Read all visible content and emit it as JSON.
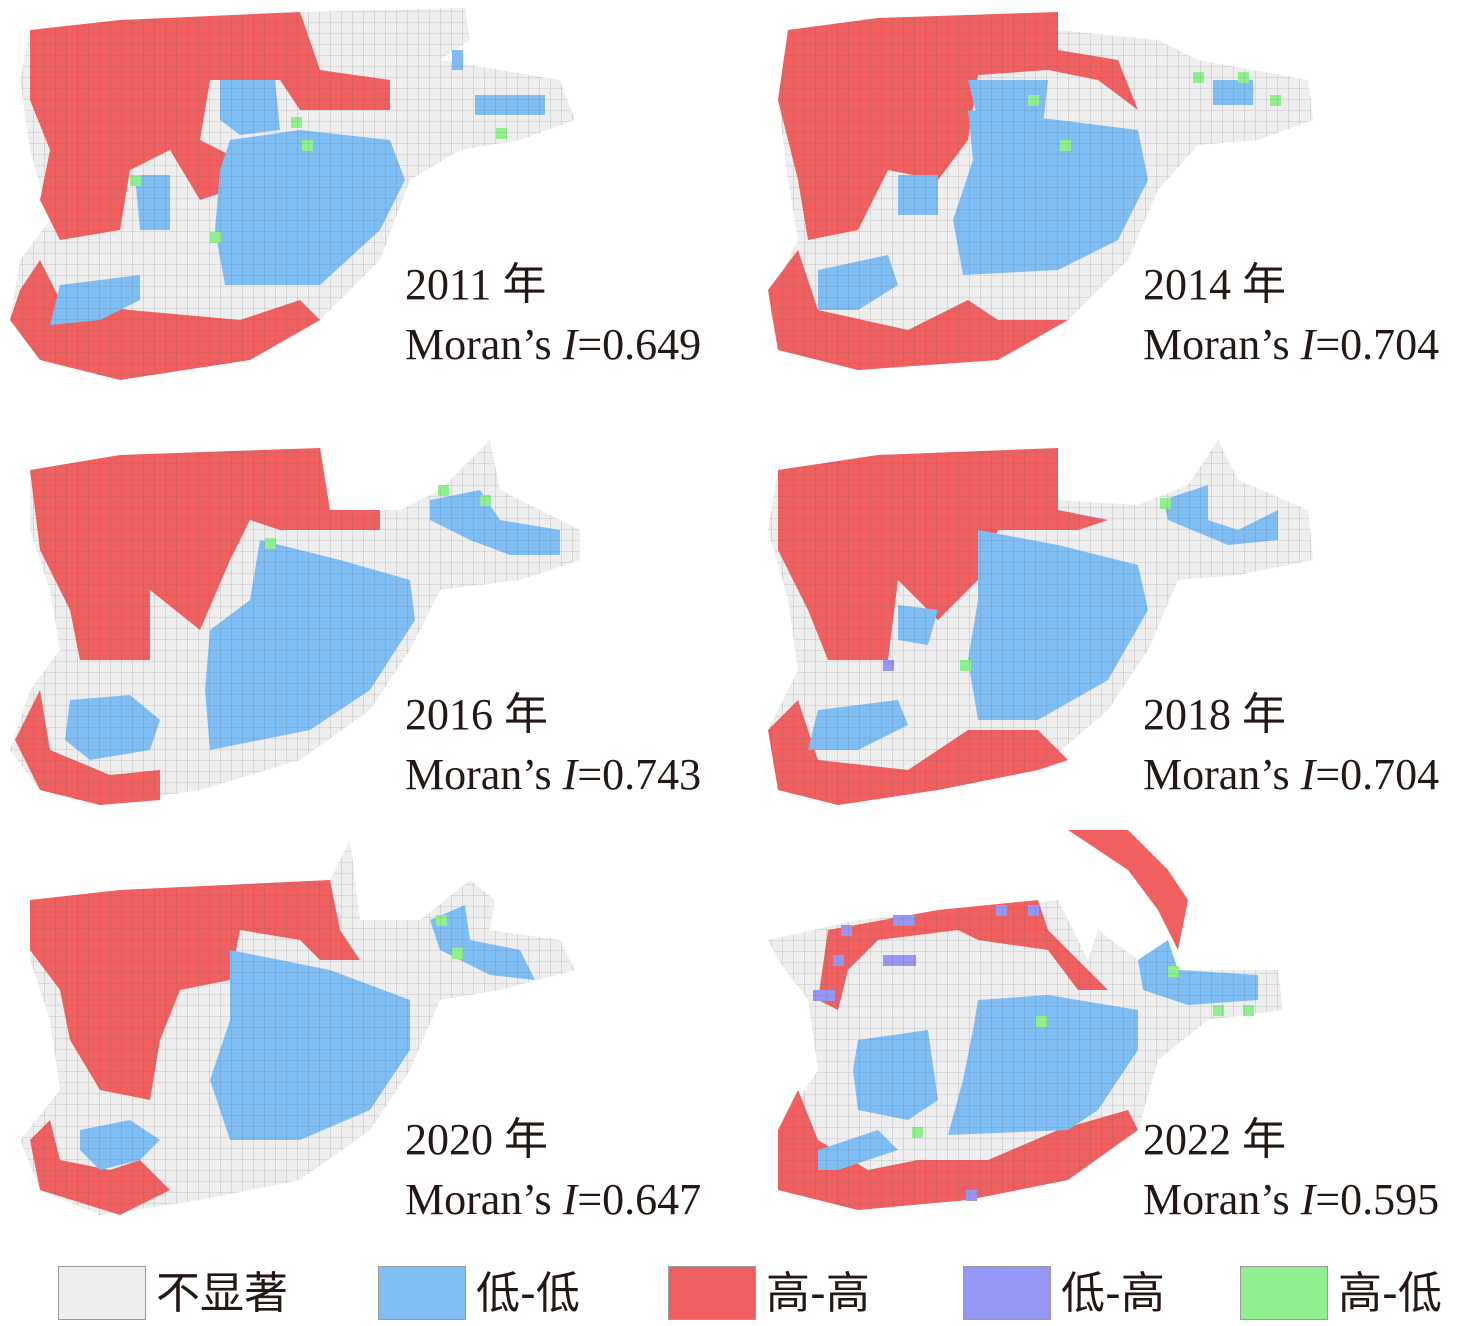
{
  "colors": {
    "not_significant": "#eeeeee",
    "low_low": "#7fbef5",
    "high_high": "#f06060",
    "low_high": "#9696f5",
    "high_low": "#90f090",
    "grid": "#555555"
  },
  "panels": [
    {
      "year": "2011 年",
      "moran_prefix": "Moran’s ",
      "moran_symbol": "I",
      "moran_value": "=0.649"
    },
    {
      "year": "2014 年",
      "moran_prefix": "Moran’s ",
      "moran_symbol": "I",
      "moran_value": "=0.704"
    },
    {
      "year": "2016 年",
      "moran_prefix": "Moran’s ",
      "moran_symbol": "I",
      "moran_value": "=0.743"
    },
    {
      "year": "2018 年",
      "moran_prefix": "Moran’s ",
      "moran_symbol": "I",
      "moran_value": "=0.704"
    },
    {
      "year": "2020 年",
      "moran_prefix": "Moran’s ",
      "moran_symbol": "I",
      "moran_value": "=0.647"
    },
    {
      "year": "2022 年",
      "moran_prefix": "Moran’s ",
      "moran_symbol": "I",
      "moran_value": "=0.595"
    }
  ],
  "legend": [
    {
      "label": "不显著",
      "color": "#eeeeee"
    },
    {
      "label": "低-低",
      "color": "#7fbef5"
    },
    {
      "label": "高-高",
      "color": "#f06060"
    },
    {
      "label": "低-高",
      "color": "#9696f5"
    },
    {
      "label": "高-低",
      "color": "#90f090"
    }
  ]
}
